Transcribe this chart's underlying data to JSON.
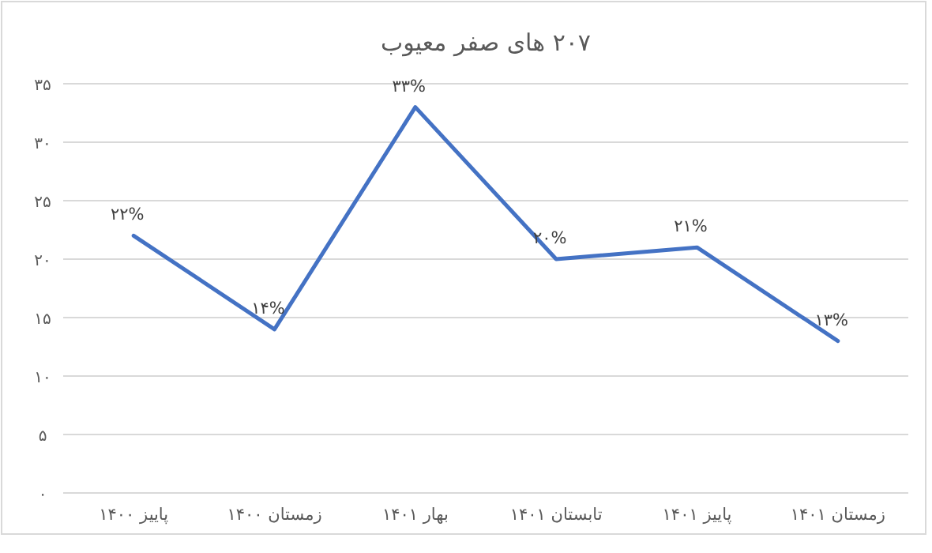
{
  "chart_data": {
    "type": "line",
    "title": "۲۰۷ های صفر معیوب",
    "categories": [
      "پاییز ۱۴۰۰",
      "زمستان ۱۴۰۰",
      "بهار ۱۴۰۱",
      "تابستان ۱۴۰۱",
      "پاییز ۱۴۰۱",
      "زمستان ۱۴۰۱"
    ],
    "series": [
      {
        "color": "#4472c4",
        "values": [
          22,
          14,
          33,
          20,
          21,
          13
        ],
        "value_labels": [
          "۲۲%",
          "۱۴%",
          "۳۳%",
          "۲۰%",
          "۲۱%",
          "۱۳%"
        ]
      }
    ],
    "ylim": [
      0,
      35
    ],
    "yticks": [
      {
        "value": 0,
        "label": "۰"
      },
      {
        "value": 5,
        "label": "۵"
      },
      {
        "value": 10,
        "label": "۱۰"
      },
      {
        "value": 15,
        "label": "۱۵"
      },
      {
        "value": 20,
        "label": "۲۰"
      },
      {
        "value": 25,
        "label": "۲۵"
      },
      {
        "value": 30,
        "label": "۳۰"
      },
      {
        "value": 35,
        "label": "۳۵"
      }
    ],
    "grid": "y",
    "marker": "none",
    "line_style": "solid"
  }
}
